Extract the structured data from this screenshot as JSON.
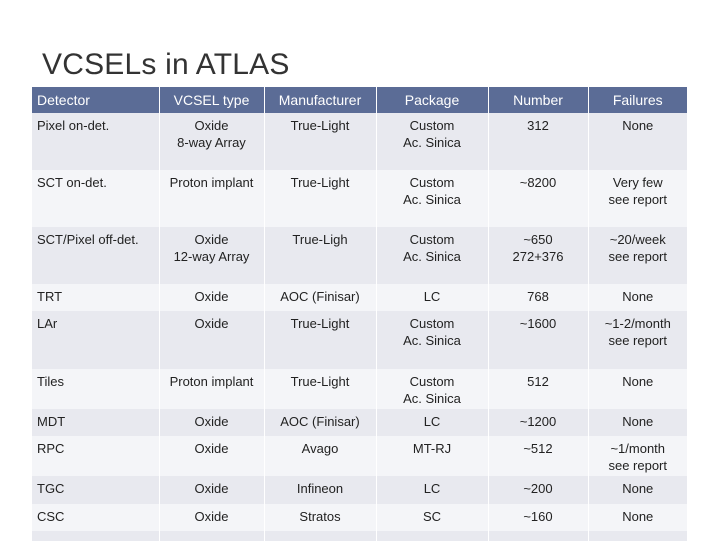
{
  "title": "VCSELs in ATLAS",
  "table": {
    "headers": [
      "Detector",
      "VCSEL type",
      "Manufacturer",
      "Package",
      "Number",
      "Failures"
    ],
    "rows": [
      [
        "Pixel on-det.",
        "Oxide\n8-way Array",
        "True-Light",
        "Custom\nAc. Sinica",
        "312",
        "None"
      ],
      [
        "SCT on-det.",
        "Proton implant",
        "True-Light",
        "Custom\nAc. Sinica",
        "~8200",
        "Very few\nsee report"
      ],
      [
        "SCT/Pixel off-det.",
        "Oxide\n12-way Array",
        "True-Ligh",
        "Custom\nAc. Sinica",
        "~650\n272+376",
        "~20/week\nsee report"
      ],
      [
        "TRT",
        "Oxide",
        "AOC (Finisar)",
        "LC",
        "768",
        "None"
      ],
      [
        "LAr",
        "Oxide",
        "True-Light",
        "Custom\nAc. Sinica",
        "~1600",
        "~1-2/month\nsee report"
      ],
      [
        "Tiles",
        "Proton implant",
        "True-Light",
        "Custom\nAc. Sinica",
        "512",
        "None"
      ],
      [
        "MDT",
        "Oxide",
        "AOC (Finisar)",
        "LC",
        "~1200",
        "None"
      ],
      [
        "RPC",
        "Oxide",
        "Avago",
        "MT-RJ",
        "~512",
        "~1/month\nsee report"
      ],
      [
        "TGC",
        "Oxide",
        "Infineon",
        "LC",
        "~200",
        "None"
      ],
      [
        "CSC",
        "Oxide",
        "Stratos",
        "SC",
        "~160",
        "None"
      ]
    ]
  }
}
